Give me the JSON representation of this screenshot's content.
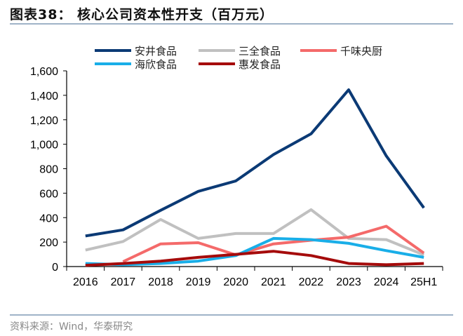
{
  "title": "图表38：  核心公司资本性开支（百万元）",
  "source": "资料来源：Wind，华泰研究",
  "chart_data": {
    "type": "line",
    "title": "核心公司资本性开支（百万元）",
    "categories": [
      "2016",
      "2017",
      "2018",
      "2019",
      "2020",
      "2021",
      "2022",
      "2023",
      "2024",
      "25H1"
    ],
    "ylim": [
      0,
      1600
    ],
    "yticks": [
      0,
      200,
      400,
      600,
      800,
      1000,
      1200,
      1400,
      1600
    ],
    "ytick_labels": [
      "0",
      "200",
      "400",
      "600",
      "800",
      "1,000",
      "1,200",
      "1,400",
      "1,600"
    ],
    "grid": false,
    "legend": "top",
    "series": [
      {
        "name": "安井食品",
        "color": "#0b3a75",
        "values": [
          250,
          300,
          460,
          615,
          700,
          915,
          1085,
          1445,
          905,
          480
        ]
      },
      {
        "name": "三全食品",
        "color": "#c0c0c0",
        "values": [
          135,
          205,
          385,
          230,
          270,
          270,
          465,
          230,
          220,
          95
        ]
      },
      {
        "name": "千味央厨",
        "color": "#f46a6a",
        "values": [
          null,
          40,
          185,
          195,
          95,
          185,
          215,
          240,
          330,
          110
        ]
      },
      {
        "name": "海欣食品",
        "color": "#19aee8",
        "values": [
          25,
          15,
          25,
          45,
          90,
          230,
          220,
          190,
          130,
          75
        ]
      },
      {
        "name": "惠发食品",
        "color": "#a50b0b",
        "values": [
          10,
          25,
          45,
          75,
          100,
          125,
          90,
          25,
          15,
          25
        ]
      }
    ]
  }
}
